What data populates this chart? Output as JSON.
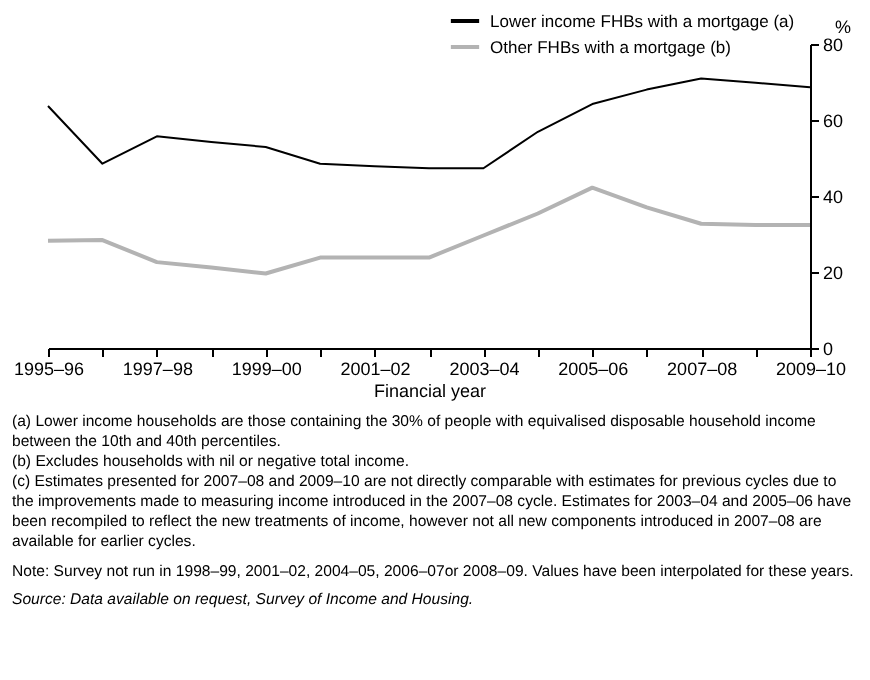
{
  "chart_data": {
    "type": "line",
    "xlabel": "Financial year",
    "ylabel": "%",
    "categories": [
      "1995–96",
      null,
      "1997–98",
      null,
      "1999–00",
      null,
      "2001–02",
      null,
      "2003–04",
      null,
      "2005–06",
      null,
      "2007–08",
      null,
      "2009–10"
    ],
    "series": [
      {
        "name": "Lower income FHBs with a mortgage (a)",
        "color": "#000000",
        "values": [
          63.7,
          48.5,
          55.7,
          54.2,
          52.9,
          48.5,
          47.8,
          47.3,
          47.3,
          56.9,
          64.2,
          68,
          70.9,
          69.8,
          68.6
        ]
      },
      {
        "name": "Other FHBs with a mortgage (b)",
        "color": "#b3b3b3",
        "values": [
          28.2,
          28.4,
          22.6,
          21.2,
          19.6,
          23.8,
          23.8,
          23.8,
          29.6,
          35.4,
          42.2,
          37,
          32.7,
          32.4,
          32.4
        ]
      }
    ],
    "ylim": [
      0,
      80
    ],
    "yticks": [
      0,
      20,
      40,
      60,
      80
    ],
    "grid": false,
    "legend": "top right",
    "annotations": [
      "(a) Lower income households are those containing the 30% of people with equivalised disposable household income between the 10th and 40th percentiles.",
      "(b) Excludes households with nil or negative total income.",
      "(c) Estimates presented for 2007–08 and 2009–10 are not directly comparable with estimates for previous cycles due to the improvements made to measuring income introduced in the 2007–08 cycle. Estimates for 2003–04 and 2005–06 have been recompiled to reflect the new treatments of income, however not all new components introduced in 2007–08 are available for earlier cycles.",
      "Note: Survey not run in 1998–99, 2001–02, 2004–05, 2006–07or 2008–09. Values have been interpolated for these years.",
      "Source: Data available on request, Survey of Income and Housing."
    ]
  }
}
